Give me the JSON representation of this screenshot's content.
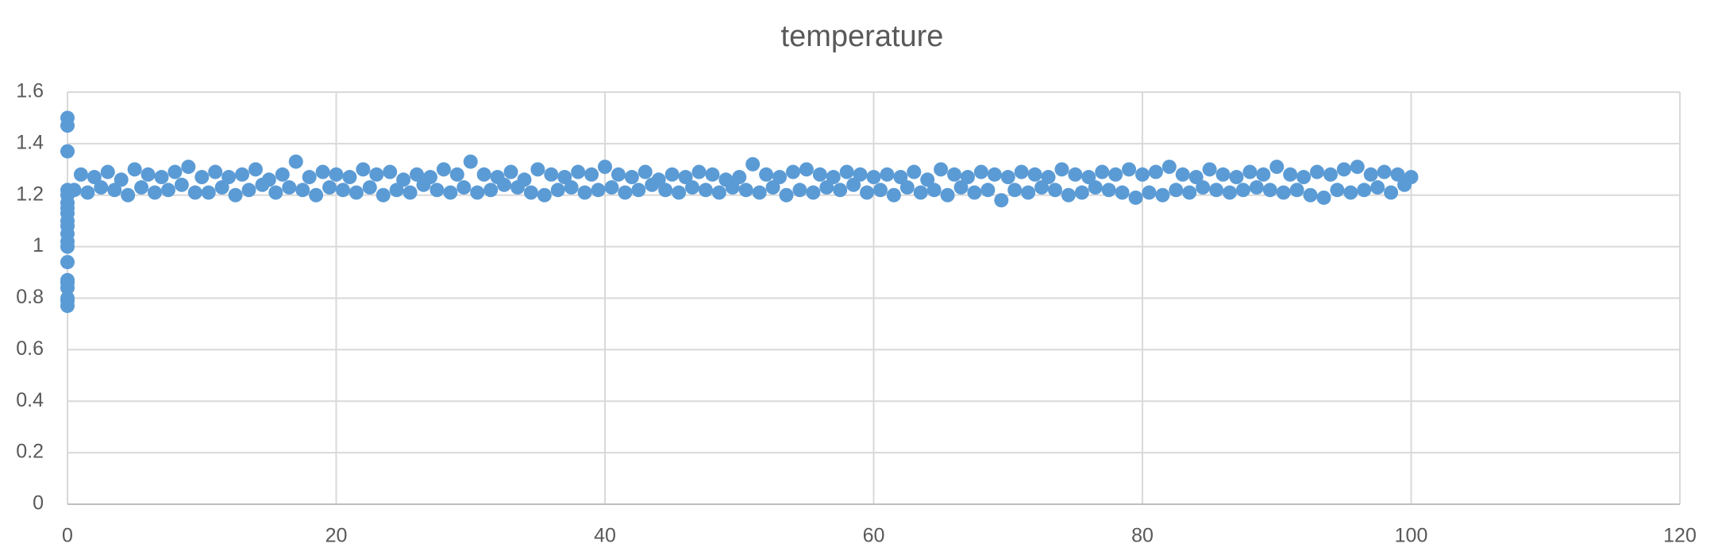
{
  "chart_data": {
    "type": "scatter",
    "title": "temperature",
    "xlim": [
      0,
      120
    ],
    "xticks": [
      0,
      20,
      40,
      60,
      80,
      100,
      120
    ],
    "ylim": [
      0,
      1.6
    ],
    "yticks": [
      0,
      0.2,
      0.4,
      0.6,
      0.8,
      1,
      1.2,
      1.4,
      1.6
    ],
    "grid": true,
    "color": "#5b9bd5",
    "x": [
      0,
      0,
      0,
      0,
      0,
      0,
      0,
      0,
      0,
      0,
      0,
      0,
      0,
      0,
      0,
      0,
      0,
      0,
      0,
      0,
      0.5,
      1,
      1.5,
      2,
      2.5,
      3,
      3.5,
      4,
      4.5,
      5,
      5.5,
      6,
      6.5,
      7,
      7.5,
      8,
      8.5,
      9,
      9.5,
      10,
      10.5,
      11,
      11.5,
      12,
      12.5,
      13,
      13.5,
      14,
      14.5,
      15,
      15.5,
      16,
      16.5,
      17,
      17.5,
      18,
      18.5,
      19,
      19.5,
      20,
      20.5,
      21,
      21.5,
      22,
      22.5,
      23,
      23.5,
      24,
      24.5,
      25,
      25.5,
      26,
      26.5,
      27,
      27.5,
      28,
      28.5,
      29,
      29.5,
      30,
      30.5,
      31,
      31.5,
      32,
      32.5,
      33,
      33.5,
      34,
      34.5,
      35,
      35.5,
      36,
      36.5,
      37,
      37.5,
      38,
      38.5,
      39,
      39.5,
      40,
      40.5,
      41,
      41.5,
      42,
      42.5,
      43,
      43.5,
      44,
      44.5,
      45,
      45.5,
      46,
      46.5,
      47,
      47.5,
      48,
      48.5,
      49,
      49.5,
      50,
      50.5,
      51,
      51.5,
      52,
      52.5,
      53,
      53.5,
      54,
      54.5,
      55,
      55.5,
      56,
      56.5,
      57,
      57.5,
      58,
      58.5,
      59,
      59.5,
      60,
      60.5,
      61,
      61.5,
      62,
      62.5,
      63,
      63.5,
      64,
      64.5,
      65,
      65.5,
      66,
      66.5,
      67,
      67.5,
      68,
      68.5,
      69,
      69.5,
      70,
      70.5,
      71,
      71.5,
      72,
      72.5,
      73,
      73.5,
      74,
      74.5,
      75,
      75.5,
      76,
      76.5,
      77,
      77.5,
      78,
      78.5,
      79,
      79.5,
      80,
      80.5,
      81,
      81.5,
      82,
      82.5,
      83,
      83.5,
      84,
      84.5,
      85,
      85.5,
      86,
      86.5,
      87,
      87.5,
      88,
      88.5,
      89,
      89.5,
      90,
      90.5,
      91,
      91.5,
      92,
      92.5,
      93,
      93.5,
      94,
      94.5,
      95,
      95.5,
      96,
      96.5,
      97,
      97.5,
      98,
      98.5,
      99,
      99.5,
      100
    ],
    "values": [
      0.77,
      0.79,
      0.8,
      0.84,
      0.86,
      0.87,
      0.94,
      1.0,
      1.02,
      1.05,
      1.08,
      1.1,
      1.13,
      1.15,
      1.17,
      1.2,
      1.22,
      1.37,
      1.47,
      1.5,
      1.22,
      1.28,
      1.21,
      1.27,
      1.23,
      1.29,
      1.22,
      1.26,
      1.2,
      1.3,
      1.23,
      1.28,
      1.21,
      1.27,
      1.22,
      1.29,
      1.24,
      1.31,
      1.21,
      1.27,
      1.21,
      1.29,
      1.23,
      1.27,
      1.2,
      1.28,
      1.22,
      1.3,
      1.24,
      1.26,
      1.21,
      1.28,
      1.23,
      1.33,
      1.22,
      1.27,
      1.2,
      1.29,
      1.23,
      1.28,
      1.22,
      1.27,
      1.21,
      1.3,
      1.23,
      1.28,
      1.2,
      1.29,
      1.22,
      1.26,
      1.21,
      1.28,
      1.24,
      1.27,
      1.22,
      1.3,
      1.21,
      1.28,
      1.23,
      1.33,
      1.21,
      1.28,
      1.22,
      1.27,
      1.24,
      1.29,
      1.23,
      1.26,
      1.21,
      1.3,
      1.2,
      1.28,
      1.22,
      1.27,
      1.23,
      1.29,
      1.21,
      1.28,
      1.22,
      1.31,
      1.23,
      1.28,
      1.21,
      1.27,
      1.22,
      1.29,
      1.24,
      1.26,
      1.22,
      1.28,
      1.21,
      1.27,
      1.23,
      1.29,
      1.22,
      1.28,
      1.21,
      1.26,
      1.23,
      1.27,
      1.22,
      1.32,
      1.21,
      1.28,
      1.23,
      1.27,
      1.2,
      1.29,
      1.22,
      1.3,
      1.21,
      1.28,
      1.23,
      1.27,
      1.22,
      1.29,
      1.24,
      1.28,
      1.21,
      1.27,
      1.22,
      1.28,
      1.2,
      1.27,
      1.23,
      1.29,
      1.21,
      1.26,
      1.22,
      1.3,
      1.2,
      1.28,
      1.23,
      1.27,
      1.21,
      1.29,
      1.22,
      1.28,
      1.18,
      1.27,
      1.22,
      1.29,
      1.21,
      1.28,
      1.23,
      1.27,
      1.22,
      1.3,
      1.2,
      1.28,
      1.21,
      1.27,
      1.23,
      1.29,
      1.22,
      1.28,
      1.21,
      1.3,
      1.19,
      1.28,
      1.21,
      1.29,
      1.2,
      1.31,
      1.22,
      1.28,
      1.21,
      1.27,
      1.23,
      1.3,
      1.22,
      1.28,
      1.21,
      1.27,
      1.22,
      1.29,
      1.23,
      1.28,
      1.22,
      1.31,
      1.21,
      1.28,
      1.22,
      1.27,
      1.2,
      1.29,
      1.19,
      1.28,
      1.22,
      1.3,
      1.21,
      1.31,
      1.22,
      1.28,
      1.23,
      1.29,
      1.21,
      1.28,
      1.24,
      1.27
    ]
  }
}
